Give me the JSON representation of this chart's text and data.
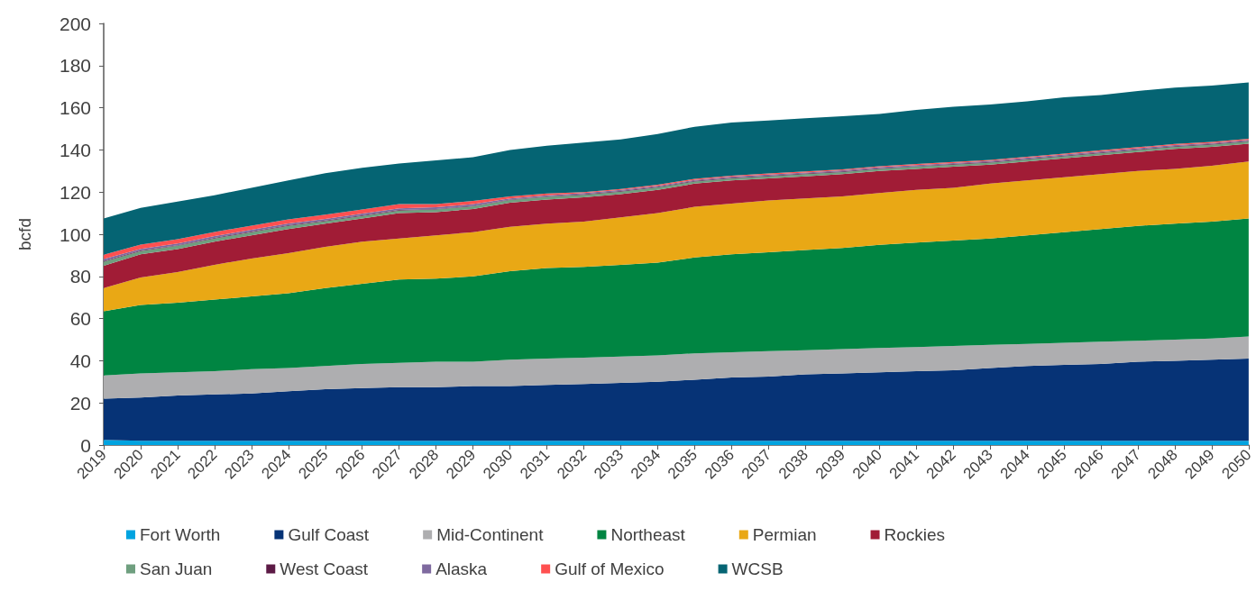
{
  "chart_data": {
    "type": "area",
    "ylabel": "bcfd",
    "stacked": true,
    "legend": "bottom",
    "ylim": [
      0,
      200
    ],
    "yticks": [
      0,
      20,
      40,
      60,
      80,
      100,
      120,
      140,
      160,
      180,
      200
    ],
    "categories": [
      "2019",
      "2020",
      "2021",
      "2022",
      "2023",
      "2024",
      "2025",
      "2026",
      "2027",
      "2028",
      "2029",
      "2030",
      "2031",
      "2032",
      "2033",
      "2034",
      "2035",
      "2036",
      "2037",
      "2038",
      "2039",
      "2040",
      "2041",
      "2042",
      "2043",
      "2044",
      "2045",
      "2046",
      "2047",
      "2048",
      "2049",
      "2050"
    ],
    "series": [
      {
        "name": "Fort Worth",
        "color": "#00a3e0",
        "values": [
          2.5,
          2,
          2,
          2,
          2,
          2,
          2,
          2,
          2,
          2,
          2,
          2,
          2,
          2,
          2,
          2,
          2,
          2,
          2,
          2,
          2,
          2,
          2,
          2,
          2,
          2,
          2,
          2,
          2,
          2,
          2,
          2
        ]
      },
      {
        "name": "Gulf Coast",
        "color": "#063376",
        "values": [
          19.5,
          20.5,
          21.5,
          22,
          22.5,
          23.5,
          24.5,
          25,
          25.5,
          25.5,
          26,
          26,
          26.5,
          27,
          27.5,
          28,
          29,
          30,
          30.5,
          31.5,
          32,
          32.5,
          33,
          33.5,
          34.5,
          35.5,
          36,
          36.5,
          37.5,
          38,
          38.5,
          39
        ]
      },
      {
        "name": "Mid-Continent",
        "color": "#aeaeb0",
        "values": [
          11,
          11.5,
          11,
          11,
          11.5,
          11,
          11,
          11.5,
          11.5,
          12,
          11.5,
          12.5,
          12.5,
          12.5,
          12.5,
          12.5,
          12.5,
          12,
          12,
          11.5,
          11.5,
          11.5,
          11.5,
          11.5,
          11,
          10.5,
          10.5,
          10.5,
          10,
          10,
          10,
          10.5
        ]
      },
      {
        "name": "Northeast",
        "color": "#008542",
        "values": [
          30.5,
          32.5,
          33,
          34,
          34.5,
          35.5,
          37,
          38,
          39.5,
          39.5,
          40.5,
          42,
          43,
          43,
          43.5,
          44,
          45.5,
          46.5,
          47,
          47.5,
          48,
          49,
          49.5,
          50,
          50.5,
          51.5,
          52.5,
          53.5,
          54.5,
          55,
          55.5,
          56
        ]
      },
      {
        "name": "Permian",
        "color": "#e9a815",
        "values": [
          11,
          13,
          14.5,
          16.5,
          18,
          19,
          19.5,
          20,
          19.5,
          20.5,
          21,
          21,
          21,
          21.5,
          22.5,
          23.5,
          24,
          24,
          24.5,
          24.5,
          24.5,
          24.5,
          25,
          25,
          26,
          26,
          26,
          26,
          26,
          26,
          26.5,
          27
        ]
      },
      {
        "name": "Rockies",
        "color": "#a11c36",
        "values": [
          10.5,
          11,
          11,
          11,
          11,
          11.5,
          11,
          11,
          12,
          11,
          11,
          11.5,
          11.5,
          11.5,
          11,
          11,
          11,
          11,
          10.5,
          10.5,
          10.5,
          10.5,
          10,
          10,
          9,
          9,
          9,
          9,
          9,
          9.5,
          9,
          8.5
        ]
      },
      {
        "name": "San Juan",
        "color": "#6f9f7f",
        "values": [
          2,
          1.5,
          1.5,
          1.5,
          1.5,
          1.5,
          1.2,
          1.2,
          1.2,
          1.2,
          1.2,
          1.2,
          1.2,
          1.2,
          1.2,
          1.2,
          1,
          1,
          1,
          1,
          1,
          1,
          1,
          1,
          1,
          1,
          1,
          1,
          1,
          1,
          1,
          1
        ]
      },
      {
        "name": "West Coast",
        "color": "#5c1a45",
        "values": [
          0.3,
          0.3,
          0.3,
          0.3,
          0.3,
          0.3,
          0.3,
          0.3,
          0.3,
          0.3,
          0.3,
          0.3,
          0.3,
          0.3,
          0.3,
          0.3,
          0.3,
          0.3,
          0.3,
          0.3,
          0.3,
          0.3,
          0.3,
          0.3,
          0.3,
          0.3,
          0.3,
          0.3,
          0.3,
          0.3,
          0.3,
          0.3
        ]
      },
      {
        "name": "Alaska",
        "color": "#7f6a9f",
        "values": [
          1,
          0.8,
          0.8,
          0.8,
          0.8,
          0.8,
          0.8,
          0.8,
          0.8,
          0.8,
          0.8,
          0.5,
          0.5,
          0.5,
          0.5,
          0.5,
          0.5,
          0.5,
          0.5,
          0.5,
          0.5,
          0.5,
          0.5,
          0.5,
          0.5,
          0.5,
          0.5,
          0.5,
          0.5,
          0.5,
          0.5,
          0.5
        ]
      },
      {
        "name": "Gulf of Mexico",
        "color": "#ff5050",
        "values": [
          2,
          2,
          2,
          2,
          2,
          2,
          2,
          2,
          2,
          1.5,
          1.5,
          1,
          0.8,
          0.5,
          0.5,
          0.5,
          0.5,
          0.5,
          0.5,
          0.5,
          0.5,
          0.5,
          0.5,
          0.5,
          0.5,
          0.5,
          0.5,
          0.5,
          0.5,
          0.5,
          0.5,
          0.5
        ]
      },
      {
        "name": "WCSB",
        "color": "#056473",
        "values": [
          17.2,
          17.4,
          17.9,
          17.4,
          17.9,
          18.4,
          19.7,
          19.7,
          19.2,
          20.7,
          20.7,
          22,
          22.7,
          23.5,
          23.5,
          24,
          24.7,
          25.2,
          25.2,
          25.2,
          25.2,
          24.7,
          25.7,
          26.2,
          26.2,
          26.2,
          26.7,
          26.2,
          26.7,
          26.7,
          26.7,
          26.7
        ]
      }
    ]
  }
}
